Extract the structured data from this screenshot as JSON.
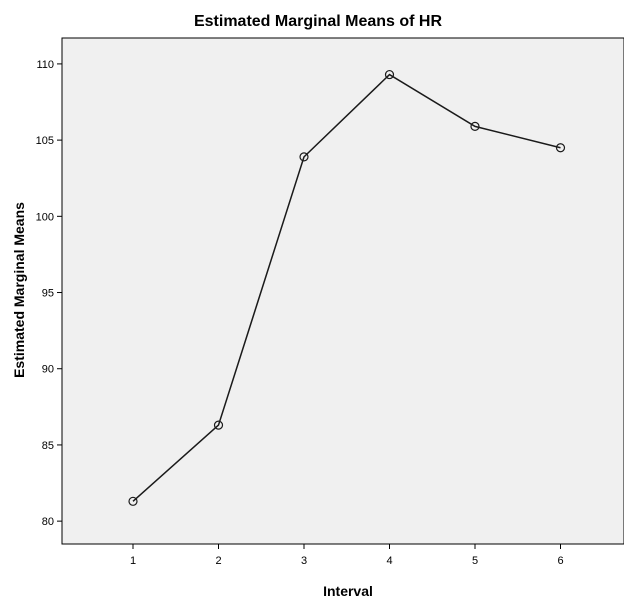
{
  "chart_data": {
    "type": "line",
    "title": "Estimated Marginal Means of HR",
    "xlabel": "Interval",
    "ylabel": "Estimated Marginal Means",
    "categories": [
      "1",
      "2",
      "3",
      "4",
      "5",
      "6"
    ],
    "series": [
      {
        "values": [
          81.3,
          86.3,
          103.9,
          109.3,
          105.9,
          104.5
        ]
      }
    ],
    "yticks": [
      "80",
      "85",
      "90",
      "95",
      "100",
      "105",
      "110"
    ],
    "ylim": [
      78.5,
      111.7
    ],
    "grid": false,
    "legend": "none",
    "colors": {
      "plot_background": "#f0f0f0",
      "line": "#1a1a1a",
      "marker": "#1a1a1a"
    },
    "marker": "open-circle"
  }
}
